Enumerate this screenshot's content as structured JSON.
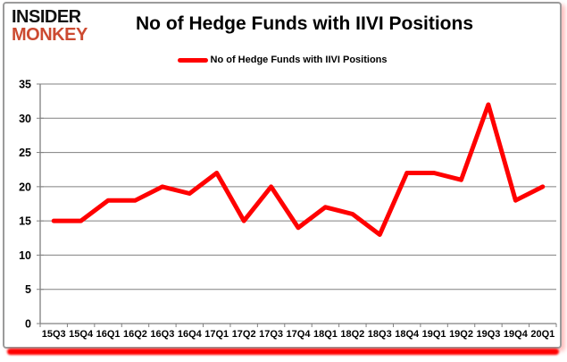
{
  "logo": {
    "line1": "INSIDER",
    "line2": "MONKEY"
  },
  "title": "No of Hedge Funds with IIVI Positions",
  "legend": {
    "label": "No of Hedge Funds with IIVI Positions"
  },
  "colors": {
    "series": "#ff0000",
    "grid": "#808080",
    "axis": "#808080",
    "text": "#000000",
    "logo_black": "#111111",
    "logo_red": "#cc4a31",
    "card_border": "#9b9b9b",
    "bottom_bar": "#ff0000"
  },
  "chart_data": {
    "type": "line",
    "title": "No of Hedge Funds with IIVI Positions",
    "categories": [
      "15Q3",
      "15Q4",
      "16Q1",
      "16Q2",
      "16Q3",
      "16Q4",
      "17Q1",
      "17Q2",
      "17Q3",
      "17Q4",
      "18Q1",
      "18Q2",
      "18Q3",
      "18Q4",
      "19Q1",
      "19Q2",
      "19Q3",
      "19Q4",
      "20Q1"
    ],
    "series": [
      {
        "name": "No of Hedge Funds with IIVI Positions",
        "values": [
          15,
          15,
          18,
          18,
          20,
          19,
          22,
          15,
          20,
          14,
          17,
          16,
          13,
          22,
          22,
          21,
          32,
          18,
          20
        ]
      }
    ],
    "xlabel": "",
    "ylabel": "",
    "ylim": [
      0,
      35
    ],
    "yticks": [
      0,
      5,
      10,
      15,
      20,
      25,
      30,
      35
    ],
    "grid": true,
    "legend_position": "top"
  }
}
